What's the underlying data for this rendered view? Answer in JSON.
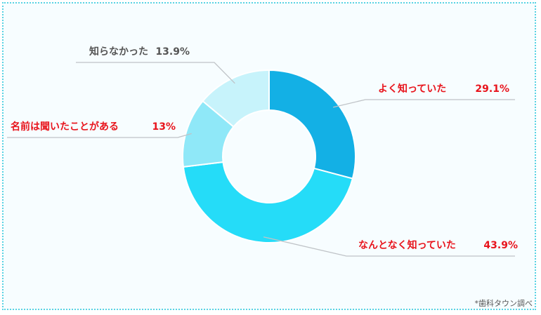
{
  "chart_data": {
    "type": "donut",
    "title": "",
    "slices": [
      {
        "label": "よく知っていた",
        "value_label": "29.1%",
        "value": 29.1,
        "color": "#13b0e5",
        "label_color": "#e8141c"
      },
      {
        "label": "なんとなく知っていた",
        "value_label": "43.9%",
        "value": 43.9,
        "color": "#25dcf8",
        "label_color": "#e8141c"
      },
      {
        "label": "名前は聞いたことがある",
        "value_label": "13%",
        "value": 13,
        "color": "#8fe8f8",
        "label_color": "#e8141c"
      },
      {
        "label": "知らなかった",
        "value_label": "13.9%",
        "value": 13.9,
        "color": "#c7f3fb",
        "label_color": "#555555"
      }
    ],
    "start_angle_deg": 0,
    "direction": "clockwise",
    "legend": "none"
  },
  "source_note": "*歯科タウン調べ"
}
